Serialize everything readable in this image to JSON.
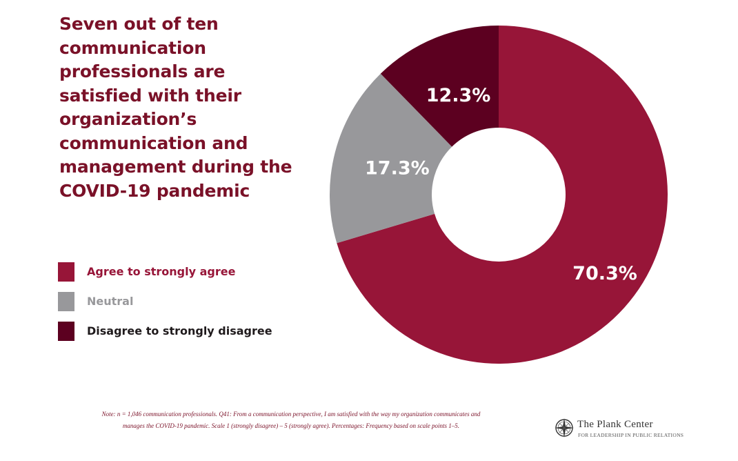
{
  "title": "Seven out of ten communication professionals are satisfied with their organization’s communication and management during the COVID-19 pandemic",
  "legend": [
    {
      "label": "Agree to strongly agree",
      "color": "#971538",
      "text_color": "#971538"
    },
    {
      "label": "Neutral",
      "color": "#98989b",
      "text_color": "#98989b"
    },
    {
      "label": "Disagree to strongly disagree",
      "color": "#5c0020",
      "text_color": "#1f1a1c"
    }
  ],
  "chart_data": {
    "type": "pie",
    "variant": "donut",
    "categories": [
      "Agree to strongly agree",
      "Neutral",
      "Disagree to strongly disagree"
    ],
    "values": [
      70.3,
      17.3,
      12.3
    ],
    "labels": [
      "70.3%",
      "17.3%",
      "12.3%"
    ],
    "colors": [
      "#971538",
      "#98989b",
      "#5c0020"
    ],
    "start": "top, clockwise",
    "legend_position": "left"
  },
  "note": {
    "line1": "Note: n = 1,046 communication professionals. Q41: From a communication perspective, I am satisfied with the way my organization communicates and",
    "line2": "manages the COVID-19 pandemic. Scale 1 (strongly disagree) – 5 (strongly agree). Percentages: Frequency based on scale points 1–5."
  },
  "logo": {
    "name": "The Plank Center",
    "tagline": "FOR LEADERSHIP IN PUBLIC RELATIONS",
    "icon": "compass-rose-icon"
  }
}
